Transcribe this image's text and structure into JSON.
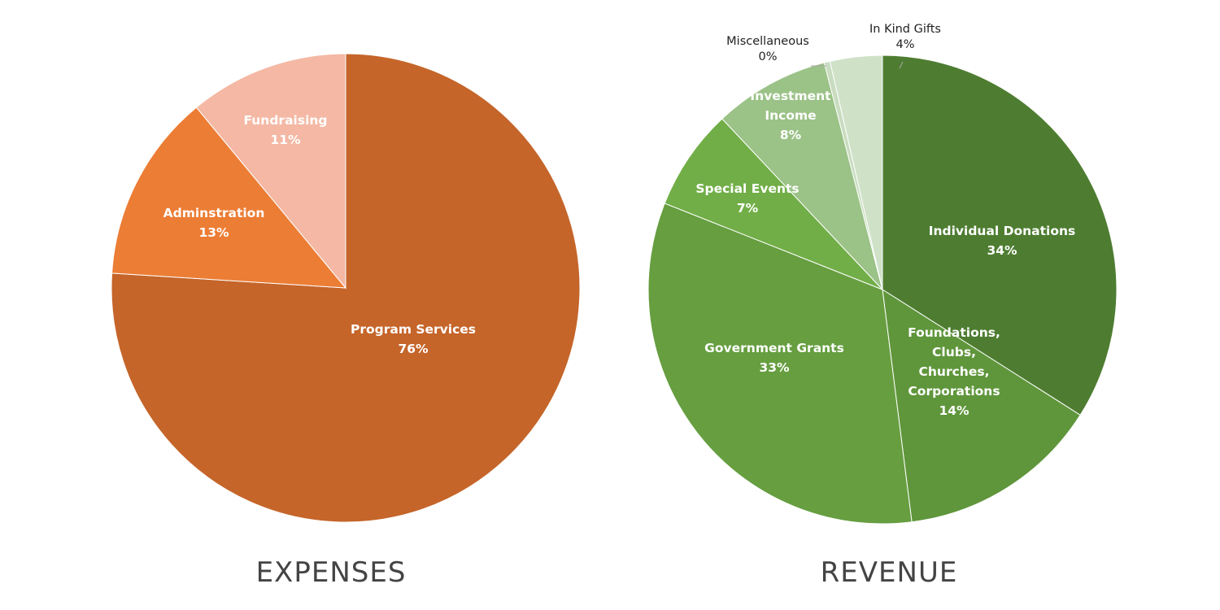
{
  "chart_data": [
    {
      "type": "pie",
      "title": "EXPENSES",
      "start_angle_deg": 0,
      "slices": [
        {
          "name": "Program Services",
          "value": 76,
          "label_lines": [
            "Program Services",
            "76%"
          ],
          "color": "#c5652a",
          "label_color": "#ffffff"
        },
        {
          "name": "Adminstration",
          "value": 13,
          "label_lines": [
            "Adminstration",
            "13%"
          ],
          "color": "#ec7d35",
          "label_color": "#ffffff"
        },
        {
          "name": "Fundraising",
          "value": 11,
          "label_lines": [
            "Fundraising",
            "11%"
          ],
          "color": "#f4b8a4",
          "label_color": "#ffffff"
        }
      ]
    },
    {
      "type": "pie",
      "title": "REVENUE",
      "start_angle_deg": 0,
      "slices": [
        {
          "name": "Individual Donations",
          "value": 34,
          "label_lines": [
            "Individual Donations",
            "34%"
          ],
          "color": "#4e7d31",
          "label_color": "#ffffff"
        },
        {
          "name": "Foundations, Clubs, Churches, Corporations",
          "value": 14,
          "label_lines": [
            "Foundations,",
            "Clubs,",
            "Churches,",
            "Corporations",
            "14%"
          ],
          "color": "#5f963b",
          "label_color": "#ffffff"
        },
        {
          "name": "Government Grants",
          "value": 33,
          "label_lines": [
            "Government Grants",
            "33%"
          ],
          "color": "#669e40",
          "label_color": "#ffffff"
        },
        {
          "name": "Special Events",
          "value": 7,
          "label_lines": [
            "Special Events",
            "7%"
          ],
          "color": "#71ae47",
          "label_color": "#ffffff"
        },
        {
          "name": "Investment Income",
          "value": 8,
          "label_lines": [
            "Investment",
            "Income",
            "8%"
          ],
          "color": "#9bc287",
          "label_color": "#ffffff"
        },
        {
          "name": "Miscellaneous",
          "value": 0.4,
          "label_lines": [
            "Miscellaneous",
            "0%"
          ],
          "color": "#c8dcbf",
          "label_color": "#222222",
          "outside": true
        },
        {
          "name": "In Kind Gifts",
          "value": 3.6,
          "label_lines": [
            "In Kind Gifts",
            "4%"
          ],
          "color": "#cfe2c8",
          "label_color": "#222222",
          "outside": true
        }
      ]
    }
  ]
}
